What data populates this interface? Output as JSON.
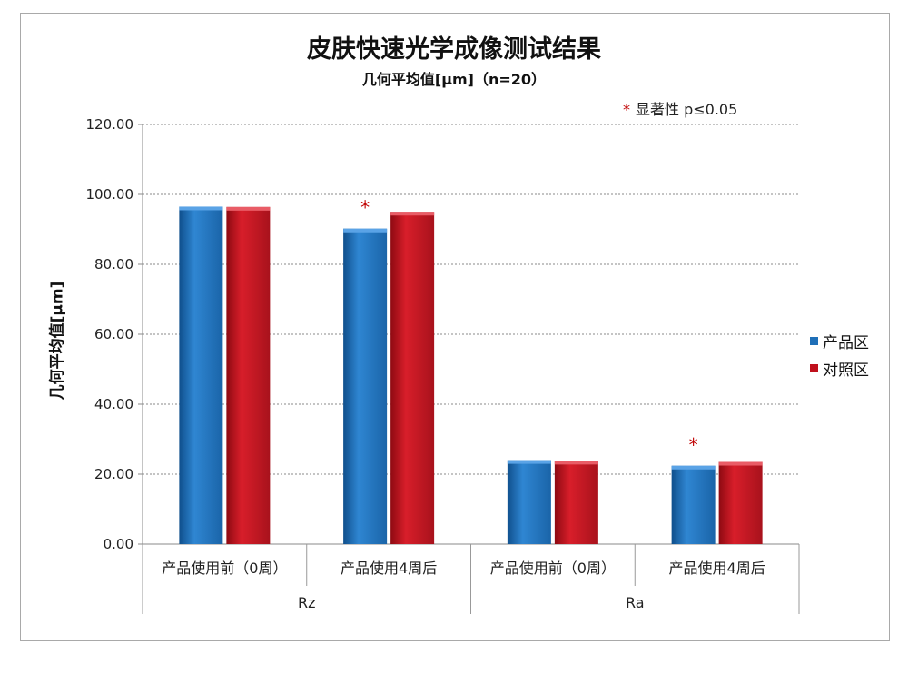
{
  "chart_data": {
    "type": "bar",
    "title": "皮肤快速光学成像测试结果",
    "subtitle": "几何平均值[μm]（n=20）",
    "ylabel": "几何平均值[μm]",
    "ylim": [
      0,
      120
    ],
    "yticks": [
      "0.00",
      "20.00",
      "40.00",
      "60.00",
      "80.00",
      "100.00",
      "120.00"
    ],
    "grid": true,
    "legend_position": "right",
    "note": {
      "marker": "*",
      "text": "显著性 p≤0.05"
    },
    "groups": [
      {
        "name": "Rz",
        "categories": [
          "产品使用前（0周）",
          "产品使用4周后"
        ]
      },
      {
        "name": "Ra",
        "categories": [
          "产品使用前（0周）",
          "产品使用4周后"
        ]
      }
    ],
    "series": [
      {
        "name": "产品区",
        "color": "#1f6fb8",
        "values": [
          96.5,
          90.2,
          24.0,
          22.4
        ]
      },
      {
        "name": "对照区",
        "color": "#c0101c",
        "values": [
          96.4,
          95.0,
          23.8,
          23.5
        ]
      }
    ],
    "significant": [
      false,
      true,
      false,
      true
    ]
  }
}
